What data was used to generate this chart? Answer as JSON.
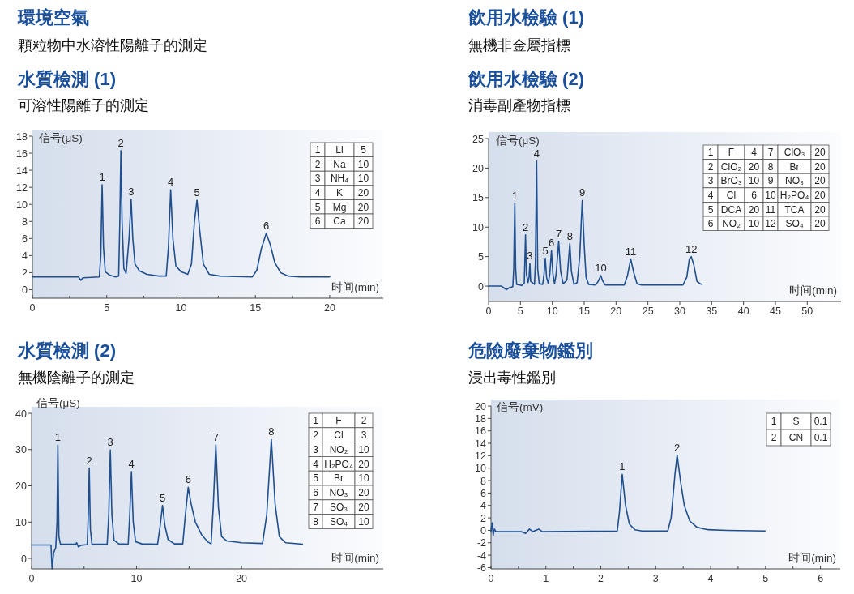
{
  "chart_data": [
    {
      "type": "other",
      "title": "環境空氣",
      "subtitle": "顆粒物中水溶性陽離子的測定"
    },
    {
      "type": "other",
      "title": "飲用水檢驗 (1)",
      "subtitle": "無機非金屬指標"
    },
    {
      "type": "line",
      "title": "水質檢測 (1)",
      "subtitle": "可溶性陽離子的測定",
      "xlabel": "时间(min)",
      "ylabel": "信号(μS)",
      "color": "#1f4f8f",
      "xlim": [
        0,
        23.6
      ],
      "xticks": [
        0,
        {
          "value": 2.5,
          "label": null
        },
        5,
        {
          "value": 7.5,
          "label": null
        },
        10,
        {
          "value": 12.5,
          "label": null
        },
        15,
        {
          "value": 17.5,
          "label": null
        },
        20
      ],
      "ylim": [
        -1,
        18
      ],
      "yticks": [
        0,
        2,
        4,
        6,
        8,
        10,
        12,
        14,
        16,
        18
      ],
      "x": [
        0,
        3.1,
        3.25,
        3.4,
        4.5,
        4.6,
        4.69,
        4.78,
        4.9,
        5.2,
        5.6,
        5.8,
        5.88,
        5.95,
        6.03,
        6.15,
        6.3,
        6.5,
        6.64,
        6.75,
        6.9,
        7.2,
        7.7,
        8.5,
        9.0,
        9.15,
        9.3,
        9.45,
        9.65,
        10.0,
        10.45,
        10.7,
        10.9,
        11.07,
        11.25,
        11.5,
        11.9,
        12.6,
        14.8,
        15.1,
        15.4,
        15.73,
        16.0,
        16.3,
        16.7,
        17.2,
        18.0,
        20.0
      ],
      "values": [
        1.5,
        1.5,
        1.1,
        1.4,
        1.5,
        4,
        12.3,
        5,
        2.1,
        1.7,
        1.5,
        1.6,
        8,
        16.3,
        8,
        2.5,
        1.9,
        6,
        10.6,
        6,
        3,
        2.2,
        1.8,
        1.6,
        1.6,
        5,
        11.7,
        6,
        2.8,
        2.1,
        1.8,
        3,
        8,
        10.5,
        7,
        3,
        1.8,
        1.6,
        1.5,
        2.3,
        4.8,
        6.6,
        5.3,
        3.2,
        2,
        1.6,
        1.5,
        1.5
      ],
      "annotations": [
        {
          "text": "1",
          "x": 4.69,
          "y": 12.3
        },
        {
          "text": "2",
          "x": 5.95,
          "y": 16.3
        },
        {
          "text": "3",
          "x": 6.64,
          "y": 10.6
        },
        {
          "text": "4",
          "x": 9.3,
          "y": 11.7
        },
        {
          "text": "5",
          "x": 11.07,
          "y": 10.5
        },
        {
          "text": "6",
          "x": 15.73,
          "y": 6.6
        },
        "1",
        "Li",
        "5",
        "2",
        "Na",
        "10",
        "3",
        "NH₄",
        "10",
        "4",
        "K",
        "20",
        "5",
        "Mg",
        "20",
        "6",
        "Ca",
        "20"
      ]
    },
    {
      "type": "line",
      "title": "飲用水檢驗 (2)",
      "subtitle": "消毒副產物指標",
      "xlabel": "时间(min)",
      "ylabel": "信号(μS)",
      "color": "#1f4f8f",
      "xlim": [
        0,
        55.3
      ],
      "xticks": [
        0,
        5,
        10,
        15,
        20,
        25,
        30,
        35,
        40,
        45,
        50
      ],
      "ylim": [
        -2.6,
        25
      ],
      "yticks": [
        0,
        5,
        10,
        15,
        20,
        25
      ],
      "x": [
        0,
        2.0,
        2.4,
        2.8,
        3.2,
        3.8,
        3.95,
        4.11,
        4.25,
        4.4,
        5.2,
        5.6,
        5.8,
        5.95,
        6.2,
        6.35,
        6.48,
        6.6,
        7.2,
        7.35,
        7.54,
        7.7,
        7.95,
        8.5,
        8.7,
        8.9,
        9.1,
        9.35,
        9.6,
        9.87,
        10.1,
        10.35,
        10.6,
        11.0,
        11.3,
        11.7,
        12.3,
        12.75,
        13.0,
        13.4,
        13.9,
        14.3,
        14.7,
        15.0,
        15.3,
        15.7,
        16.8,
        17.2,
        17.6,
        17.9,
        18.3,
        21.3,
        21.8,
        22.3,
        22.8,
        23.3,
        24,
        30.5,
        31.1,
        31.5,
        31.8,
        32.2,
        32.7,
        33.2,
        33.5
      ],
      "values": [
        0,
        0,
        -0.3,
        -0.6,
        -0.3,
        -0.1,
        3,
        14.0,
        3,
        0.3,
        0.1,
        0.5,
        8.7,
        2,
        0.6,
        1.5,
        3.8,
        0.8,
        0.3,
        4,
        21.2,
        3,
        0.4,
        0.3,
        2,
        4.7,
        1.5,
        0.5,
        2,
        6.0,
        2,
        0.4,
        2,
        7.6,
        2.5,
        0.4,
        1,
        7.2,
        2.5,
        0.3,
        0.6,
        5,
        14.5,
        7,
        1.5,
        0.3,
        0.2,
        0.8,
        1.8,
        0.9,
        0.2,
        0.2,
        1.8,
        4.6,
        2.2,
        0.4,
        0.2,
        0.2,
        1.5,
        4.6,
        5.0,
        3.6,
        0.8,
        0.4,
        0.3
      ],
      "annotations": [
        {
          "text": "1",
          "x": 4.11,
          "y": 14.0
        },
        {
          "text": "2",
          "x": 5.8,
          "y": 8.7
        },
        {
          "text": "3",
          "x": 6.48,
          "y": 3.8
        },
        {
          "text": "4",
          "x": 7.54,
          "y": 21.2
        },
        {
          "text": "5",
          "x": 8.9,
          "y": 4.7
        },
        {
          "text": "6",
          "x": 9.87,
          "y": 6.0
        },
        {
          "text": "7",
          "x": 11.0,
          "y": 7.6
        },
        {
          "text": "8",
          "x": 12.75,
          "y": 7.2
        },
        {
          "text": "9",
          "x": 14.7,
          "y": 14.5
        },
        {
          "text": "10",
          "x": 17.6,
          "y": 1.8
        },
        {
          "text": "11",
          "x": 22.3,
          "y": 4.6
        },
        {
          "text": "12",
          "x": 31.8,
          "y": 5.0
        },
        "1",
        "F",
        "4",
        "7",
        "ClO₃",
        "20",
        "2",
        "ClO₂",
        "20",
        "8",
        "Br",
        "20",
        "3",
        "BrO₃",
        "10",
        "9",
        "NO₃",
        "20",
        "4",
        "Cl",
        "6",
        "10",
        "H₂PO₄",
        "20",
        "5",
        "DCA",
        "20",
        "11",
        "TCA",
        "20",
        "6",
        "NO₂",
        "10",
        "12",
        "SO₄",
        "20"
      ]
    },
    {
      "type": "line",
      "title": "水質檢測 (2)",
      "subtitle": "無機陰離子的測定",
      "xlabel": "时间(min)",
      "ylabel": "信号(μS)",
      "color": "#1f4f8f",
      "xlim": [
        0,
        33.5
      ],
      "xticks": [
        0,
        {
          "value": 5,
          "label": null
        },
        10,
        {
          "value": 15,
          "label": null
        },
        20
      ],
      "ylim": [
        -2.9,
        40
      ],
      "yticks": [
        0,
        10,
        20,
        30,
        40
      ],
      "x": [
        0,
        1.85,
        1.95,
        2.1,
        2.3,
        2.42,
        2.5,
        2.6,
        2.75,
        4.2,
        4.3,
        4.45,
        4.7,
        5.3,
        5.4,
        5.49,
        5.6,
        5.75,
        7.2,
        7.35,
        7.5,
        7.65,
        7.85,
        8.3,
        9.2,
        9.35,
        9.51,
        9.68,
        9.9,
        10.5,
        12.0,
        12.25,
        12.47,
        12.7,
        13.0,
        13.6,
        14.4,
        14.65,
        14.92,
        15.2,
        15.6,
        16.2,
        16.8,
        17.1,
        17.3,
        17.55,
        17.8,
        18.1,
        18.6,
        20.0,
        22.0,
        22.4,
        22.84,
        23.2,
        23.6,
        24.2,
        25.8
      ],
      "values": [
        3.7,
        3.7,
        -2.9,
        1.5,
        3,
        10,
        31.2,
        6,
        3.9,
        3.9,
        4.3,
        3.2,
        3.6,
        3.8,
        12,
        24.9,
        8,
        3.9,
        3.9,
        12,
        29.9,
        12,
        5,
        4,
        3.9,
        12,
        23.9,
        10,
        4.6,
        4,
        3.9,
        9,
        14.6,
        9,
        5.2,
        4,
        4,
        12,
        19.6,
        15,
        10,
        6.5,
        4.5,
        4.0,
        14,
        31.3,
        14,
        6,
        4.8,
        4.3,
        4.1,
        12,
        32.8,
        15,
        6,
        4.3,
        3.9
      ],
      "annotations": [
        {
          "text": "1",
          "x": 2.5,
          "y": 31.2
        },
        {
          "text": "2",
          "x": 5.49,
          "y": 24.9
        },
        {
          "text": "3",
          "x": 7.5,
          "y": 29.9
        },
        {
          "text": "4",
          "x": 9.51,
          "y": 23.9
        },
        {
          "text": "5",
          "x": 12.47,
          "y": 14.6
        },
        {
          "text": "6",
          "x": 14.92,
          "y": 19.6
        },
        {
          "text": "7",
          "x": 17.55,
          "y": 31.3
        },
        {
          "text": "8",
          "x": 22.84,
          "y": 32.8
        },
        "1",
        "F",
        "2",
        "2",
        "Cl",
        "3",
        "3",
        "NO₂",
        "10",
        "4",
        "H₂PO₄",
        "20",
        "5",
        "Br",
        "10",
        "6",
        "NO₃",
        "20",
        "7",
        "SO₃",
        "20",
        "8",
        "SO₄",
        "10"
      ]
    },
    {
      "type": "line",
      "title": "危險廢棄物鑑別",
      "subtitle": "浸出毒性鑑別",
      "xlabel": "时间(min)",
      "ylabel": "信号(mV)",
      "color": "#1f4f8f",
      "xlim": [
        0,
        6.36
      ],
      "xticks": [
        0,
        {
          "value": 0.5,
          "label": null
        },
        1,
        {
          "value": 1.5,
          "label": null
        },
        2,
        {
          "value": 2.5,
          "label": null
        },
        3,
        {
          "value": 3.5,
          "label": null
        },
        4,
        {
          "value": 4.5,
          "label": null
        },
        5,
        {
          "value": 5.5,
          "label": null
        },
        6
      ],
      "ylim": [
        -6.2,
        20
      ],
      "yticks": [
        -6,
        -4,
        -2,
        0,
        2,
        4,
        6,
        8,
        10,
        12,
        14,
        16,
        18,
        20
      ],
      "x": [
        0,
        0.02,
        0.04,
        0.06,
        0.09,
        0.55,
        0.63,
        0.7,
        0.76,
        0.87,
        0.93,
        2.3,
        2.34,
        2.39,
        2.45,
        2.52,
        2.62,
        2.75,
        3.22,
        3.28,
        3.35,
        3.39,
        3.45,
        3.52,
        3.62,
        3.75,
        3.95,
        4.3,
        4.99
      ],
      "values": [
        -0.2,
        1.2,
        -0.8,
        0.2,
        -0.2,
        -0.2,
        -0.5,
        0.2,
        -0.2,
        0.2,
        -0.2,
        -0.1,
        3,
        9.0,
        4,
        1,
        0.1,
        -0.1,
        -0.1,
        2,
        9,
        12.1,
        8,
        4,
        1.5,
        0.5,
        0.1,
        0,
        -0.1
      ],
      "annotations": [
        {
          "text": "1",
          "x": 2.39,
          "y": 9.0
        },
        {
          "text": "2",
          "x": 3.39,
          "y": 12.1
        },
        "1",
        "S",
        "0.1",
        "2",
        "CN",
        "0.1"
      ]
    }
  ]
}
